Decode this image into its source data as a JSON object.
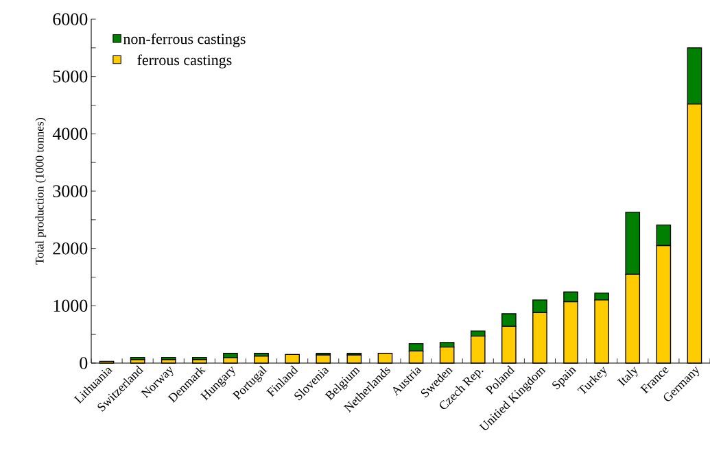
{
  "chart_data": {
    "type": "bar",
    "stacked": true,
    "ylabel": "Total production (1000 tonnes)",
    "categories": [
      "Lithuania",
      "Switzerland",
      "Norway",
      "Denmark",
      "Hungary",
      "Portugal",
      "Finland",
      "Slovenia",
      "Belgium",
      "Netherlands",
      "Austria",
      "Sweden",
      "Czech Rep.",
      "Poland",
      "Unitied Kingdom",
      "Spain",
      "Turkey",
      "Italy",
      "France",
      "Germany"
    ],
    "series": [
      {
        "name": "ferrous castings",
        "color": "#ffcc00",
        "values": [
          30,
          60,
          60,
          60,
          90,
          120,
          150,
          140,
          140,
          170,
          210,
          280,
          470,
          640,
          880,
          1070,
          1100,
          1550,
          2050,
          4520
        ]
      },
      {
        "name": "non-ferrous castings",
        "color": "#008000",
        "values": [
          null,
          40,
          40,
          40,
          80,
          50,
          0,
          30,
          30,
          0,
          130,
          80,
          90,
          220,
          220,
          170,
          120,
          1080,
          360,
          980
        ]
      }
    ],
    "ylim": [
      0,
      6000
    ],
    "yticks": [
      0,
      {
        "value": 500,
        "label": null
      },
      1000,
      {
        "value": 1500,
        "label": null
      },
      2000,
      {
        "value": 2500,
        "label": null
      },
      3000,
      {
        "value": 3500,
        "label": null
      },
      4000,
      {
        "value": 4500,
        "label": null
      },
      5000,
      {
        "value": 5500,
        "label": null
      },
      6000
    ],
    "legend": "top left"
  }
}
